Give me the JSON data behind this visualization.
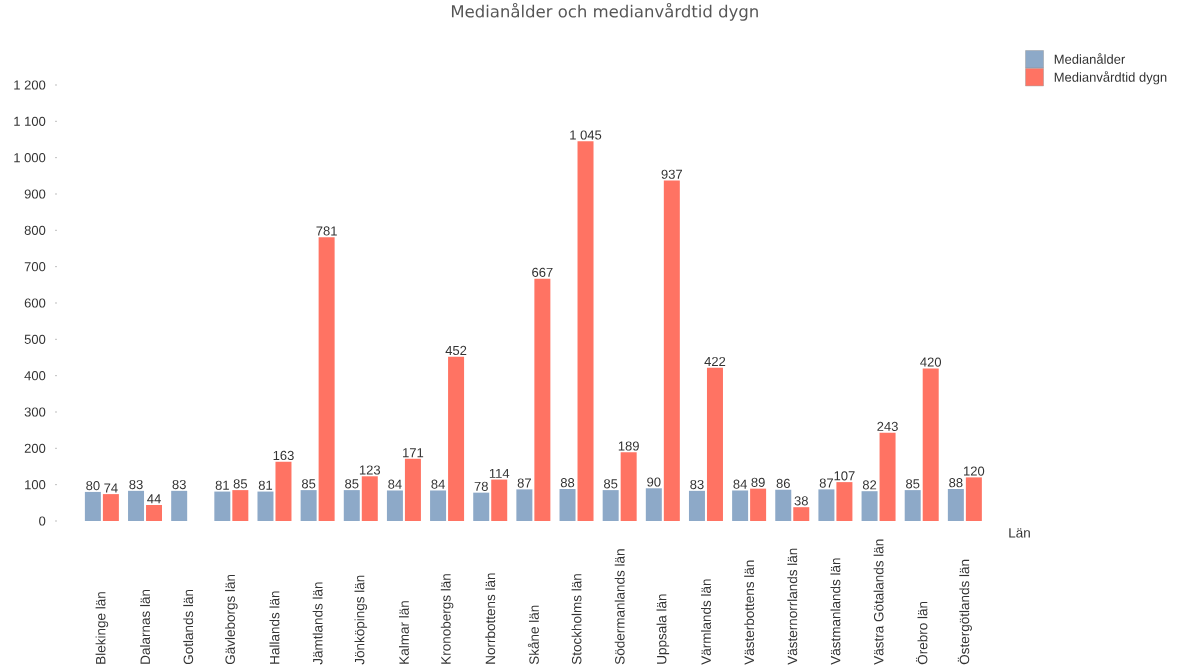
{
  "chart_data": {
    "type": "bar",
    "title": "Medianålder och medianvårdtid dygn",
    "xlabel": "Län",
    "categories": [
      "Blekinge län",
      "Dalarnas län",
      "Gotlands län",
      "Gävleborgs län",
      "Hallands län",
      "Jämtlands län",
      "Jönköpings län",
      "Kalmar län",
      "Kronobergs län",
      "Norrbottens län",
      "Skåne län",
      "Stockholms län",
      "Södermanlands län",
      "Uppsala län",
      "Värmlands län",
      "Västerbottens län",
      "Västernorrlands län",
      "Västmanlands län",
      "Västra Götalands län",
      "Örebro län",
      "Östergötlands län"
    ],
    "series": [
      {
        "name": "Medianålder",
        "color": "#8DA9C8",
        "values": [
          80,
          83,
          83,
          81,
          81,
          85,
          85,
          84,
          84,
          78,
          87,
          88,
          85,
          90,
          83,
          84,
          86,
          87,
          82,
          85,
          88
        ],
        "value_labels": [
          "80",
          "83",
          "83",
          "81",
          "81",
          "85",
          "85",
          "84",
          "84",
          "78",
          "87",
          "88",
          "85",
          "90",
          "83",
          "84",
          "86",
          "87",
          "82",
          "85",
          "88"
        ]
      },
      {
        "name": "Medianvårdtid dygn",
        "color": "#FF7363",
        "values": [
          74,
          44,
          null,
          85,
          163,
          781,
          123,
          171,
          452,
          114,
          667,
          1045,
          189,
          937,
          422,
          89,
          38,
          107,
          243,
          420,
          120
        ],
        "value_labels": [
          "74",
          "44",
          null,
          "85",
          "163",
          "781",
          "123",
          "171",
          "452",
          "114",
          "667",
          "1 045",
          "189",
          "937",
          "422",
          "89",
          "38",
          "107",
          "243",
          "420",
          "120"
        ]
      }
    ],
    "ylim": [
      0,
      1200
    ],
    "yticks": [
      0,
      100,
      200,
      300,
      400,
      500,
      600,
      700,
      800,
      900,
      {
        "value": 1000,
        "label": "1 000"
      },
      {
        "value": 1100,
        "label": "1 100"
      },
      {
        "value": 1200,
        "label": "1 200"
      }
    ],
    "legend": "top right"
  }
}
